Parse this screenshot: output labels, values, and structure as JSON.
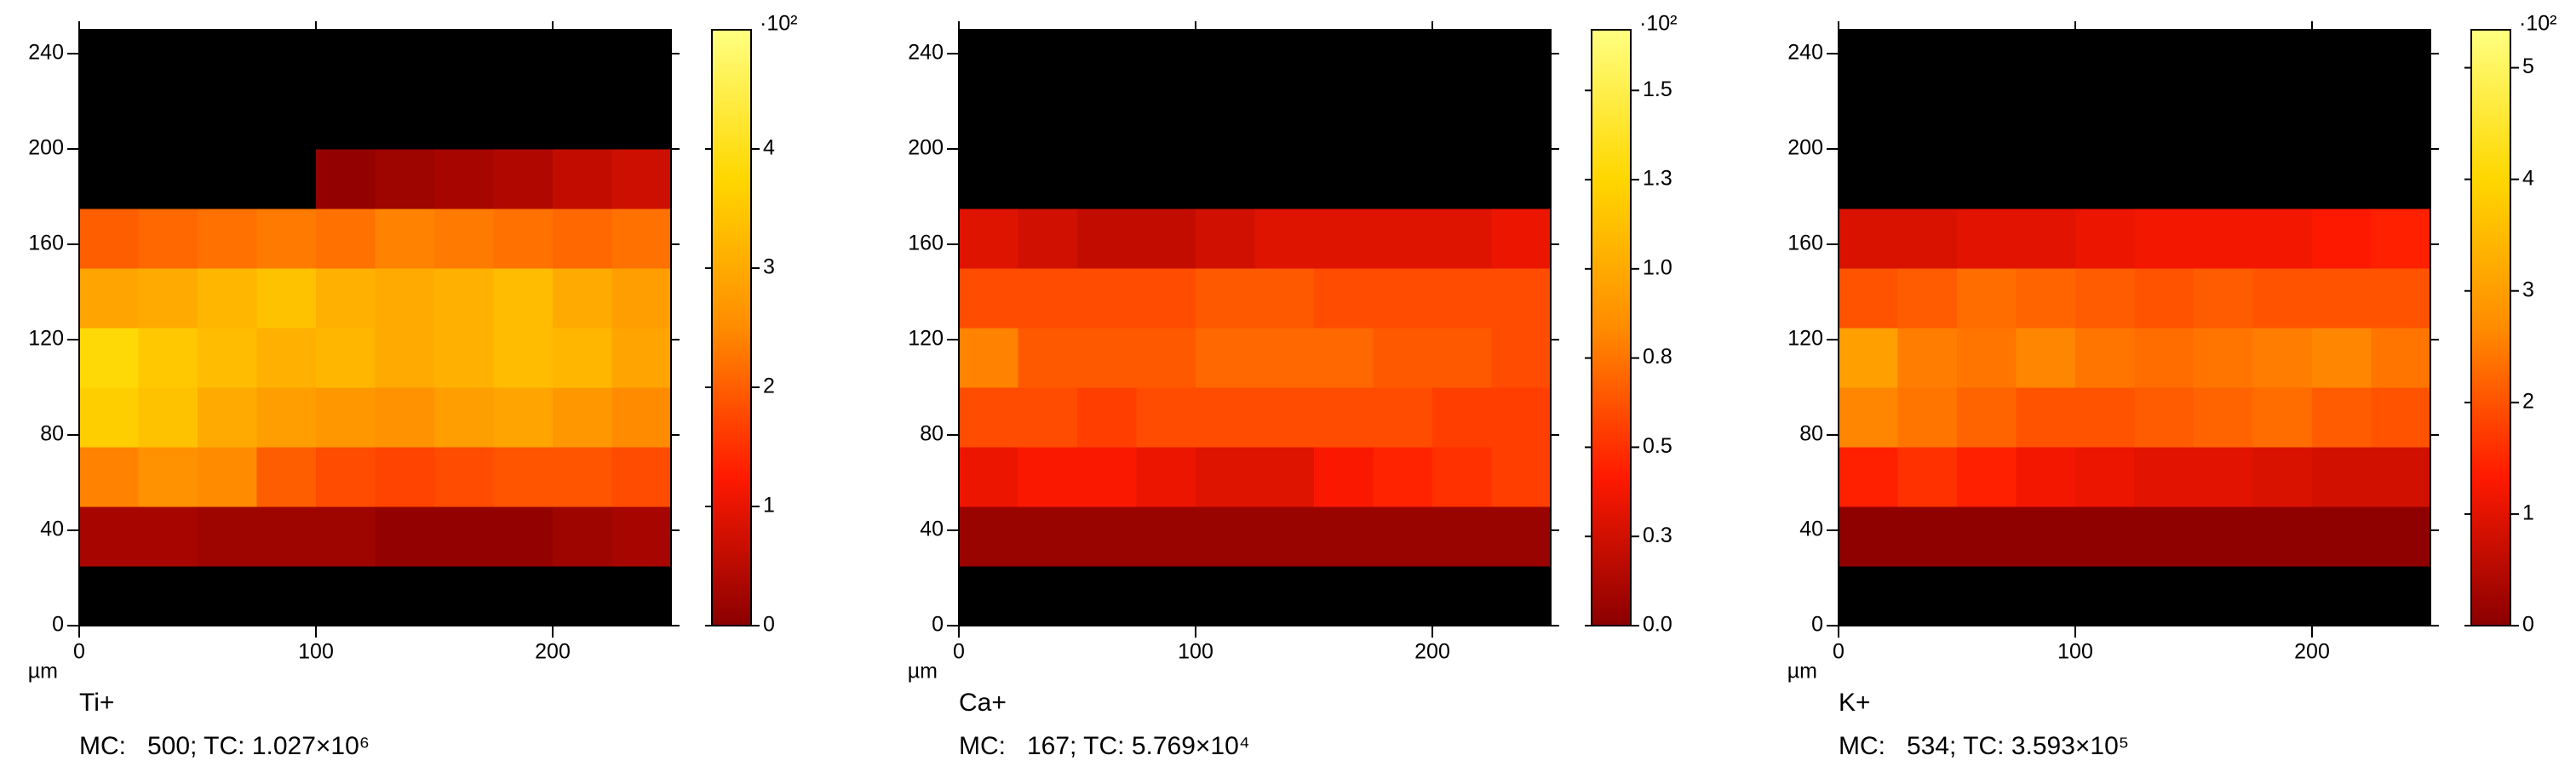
{
  "chart_data": [
    {
      "type": "heatmap",
      "title": "Ti+",
      "footer": "MC:   500; TC: 1.027×10⁶",
      "axis_unit": "µm",
      "colorbar_label": "·10²",
      "xbins": [
        0,
        25,
        50,
        75,
        100,
        125,
        150,
        175,
        200,
        225,
        250
      ],
      "ybins": [
        0,
        25,
        50,
        75,
        100,
        125,
        150,
        175,
        200,
        225,
        250
      ],
      "z": [
        [
          0,
          0,
          0,
          0,
          0,
          0,
          0,
          0,
          0,
          0
        ],
        [
          0.3,
          0.3,
          0.2,
          0.2,
          0.2,
          0.1,
          0.1,
          0.1,
          0.2,
          0.3
        ],
        [
          2.4,
          2.6,
          2.5,
          2.0,
          1.8,
          1.7,
          1.8,
          1.9,
          1.9,
          1.8
        ],
        [
          3.6,
          3.4,
          3.0,
          2.8,
          2.7,
          2.6,
          2.8,
          2.9,
          2.7,
          2.5
        ],
        [
          3.8,
          3.5,
          3.3,
          3.1,
          3.2,
          3.0,
          3.1,
          3.3,
          3.2,
          2.9
        ],
        [
          2.9,
          3.0,
          3.2,
          3.4,
          3.1,
          3.0,
          3.1,
          3.3,
          3.0,
          2.8
        ],
        [
          2.0,
          2.1,
          2.2,
          2.3,
          2.2,
          2.4,
          2.3,
          2.2,
          2.1,
          2.2
        ],
        [
          0,
          0,
          0,
          0,
          0.1,
          0.2,
          0.3,
          0.4,
          0.6,
          0.7
        ],
        [
          0,
          0,
          0,
          0,
          0,
          0,
          0,
          0,
          0,
          0
        ],
        [
          0,
          0,
          0,
          0,
          0,
          0,
          0,
          0,
          0,
          0
        ]
      ],
      "xlim": [
        0,
        250
      ],
      "ylim": [
        0,
        250
      ],
      "xticks": [
        0,
        100,
        200
      ],
      "yticks": [
        0,
        40,
        80,
        120,
        160,
        200,
        240
      ],
      "zlim": [
        0,
        5
      ],
      "zticks": [
        0,
        1,
        2,
        3,
        4
      ],
      "colormap": [
        "#8b0000",
        "#ff1a00",
        "#ff8c00",
        "#ffd700",
        "#ffff80"
      ]
    },
    {
      "type": "heatmap",
      "title": "Ca+",
      "footer": "MC:   167; TC: 5.769×10⁴",
      "axis_unit": "µm",
      "colorbar_label": "·10²",
      "xbins": [
        0,
        25,
        50,
        75,
        100,
        125,
        150,
        175,
        200,
        225,
        250
      ],
      "ybins": [
        0,
        25,
        50,
        75,
        100,
        125,
        150,
        175,
        200,
        225,
        250
      ],
      "z": [
        [
          0,
          0,
          0,
          0,
          0,
          0,
          0,
          0,
          0,
          0
        ],
        [
          0.05,
          0.05,
          0.05,
          0.05,
          0.05,
          0.05,
          0.05,
          0.05,
          0.05,
          0.05
        ],
        [
          0.35,
          0.4,
          0.4,
          0.35,
          0.3,
          0.3,
          0.4,
          0.45,
          0.5,
          0.55
        ],
        [
          0.6,
          0.6,
          0.55,
          0.6,
          0.6,
          0.6,
          0.6,
          0.6,
          0.55,
          0.55
        ],
        [
          0.8,
          0.65,
          0.65,
          0.65,
          0.7,
          0.7,
          0.7,
          0.65,
          0.65,
          0.6
        ],
        [
          0.6,
          0.6,
          0.6,
          0.6,
          0.65,
          0.65,
          0.6,
          0.6,
          0.6,
          0.6
        ],
        [
          0.3,
          0.25,
          0.2,
          0.2,
          0.25,
          0.3,
          0.3,
          0.3,
          0.3,
          0.35
        ],
        [
          0,
          0,
          0,
          0,
          0,
          0,
          0,
          0,
          0,
          0
        ],
        [
          0,
          0,
          0,
          0,
          0,
          0,
          0,
          0,
          0,
          0
        ],
        [
          0,
          0,
          0,
          0,
          0,
          0,
          0,
          0,
          0,
          0
        ]
      ],
      "xlim": [
        0,
        250
      ],
      "ylim": [
        0,
        250
      ],
      "xticks": [
        0,
        100,
        200
      ],
      "yticks": [
        0,
        40,
        80,
        120,
        160,
        200,
        240
      ],
      "zlim": [
        0,
        1.67
      ],
      "zticks": [
        {
          "value": 0,
          "label": "0.0"
        },
        {
          "value": 0.25,
          "label": "0.3"
        },
        {
          "value": 0.5,
          "label": "0.5"
        },
        {
          "value": 0.75,
          "label": "0.8"
        },
        {
          "value": 1,
          "label": "1.0"
        },
        {
          "value": 1.25,
          "label": "1.3"
        },
        1.5
      ],
      "colormap": [
        "#8b0000",
        "#ff1a00",
        "#ff8c00",
        "#ffd700",
        "#ffff80"
      ]
    },
    {
      "type": "heatmap",
      "title": "K+",
      "footer": "MC:   534; TC: 3.593×10⁵",
      "axis_unit": "µm",
      "colorbar_label": "·10²",
      "xbins": [
        0,
        25,
        50,
        75,
        100,
        125,
        150,
        175,
        200,
        225,
        250
      ],
      "ybins": [
        0,
        25,
        50,
        75,
        100,
        125,
        150,
        175,
        200,
        225,
        250
      ],
      "z": [
        [
          0,
          0,
          0,
          0,
          0,
          0,
          0,
          0,
          0,
          0
        ],
        [
          0.05,
          0.05,
          0.05,
          0.05,
          0.05,
          0.05,
          0.05,
          0.05,
          0.05,
          0.05
        ],
        [
          1.4,
          1.6,
          1.4,
          1.2,
          1.1,
          1.0,
          1.0,
          0.9,
          0.8,
          0.8
        ],
        [
          2.6,
          2.4,
          2.2,
          2.0,
          2.0,
          2.1,
          2.2,
          2.3,
          2.1,
          2.0
        ],
        [
          3.0,
          2.5,
          2.4,
          2.6,
          2.4,
          2.3,
          2.4,
          2.5,
          2.6,
          2.4
        ],
        [
          2.0,
          2.1,
          2.3,
          2.2,
          2.1,
          2.0,
          2.1,
          2.0,
          2.0,
          2.0
        ],
        [
          0.9,
          0.9,
          1.0,
          1.0,
          1.1,
          1.2,
          1.2,
          1.2,
          1.3,
          1.4
        ],
        [
          0,
          0,
          0,
          0,
          0,
          0,
          0,
          0,
          0,
          0
        ],
        [
          0,
          0,
          0,
          0,
          0,
          0,
          0,
          0,
          0,
          0
        ],
        [
          0,
          0,
          0,
          0,
          0,
          0,
          0,
          0,
          0,
          0
        ]
      ],
      "xlim": [
        0,
        250
      ],
      "ylim": [
        0,
        250
      ],
      "xticks": [
        0,
        100,
        200
      ],
      "yticks": [
        0,
        40,
        80,
        120,
        160,
        200,
        240
      ],
      "zlim": [
        0,
        5.34
      ],
      "zticks": [
        0,
        1,
        2,
        3,
        4,
        5
      ],
      "colormap": [
        "#8b0000",
        "#ff1a00",
        "#ff8c00",
        "#ffd700",
        "#ffff80"
      ]
    }
  ]
}
